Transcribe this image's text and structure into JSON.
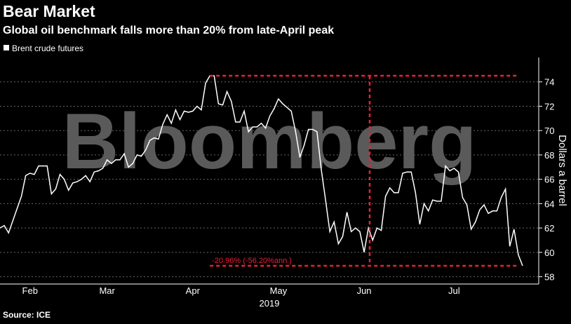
{
  "chart_data": {
    "type": "line",
    "title": "Bear Market",
    "subtitle": "Global oil benchmark falls more than 20% from late-April peak",
    "watermark": "Bloomberg",
    "source": "Source: ICE",
    "x_label": "2019",
    "y_label": "Dollars a barrel",
    "categories": [
      null,
      null,
      null,
      null,
      null,
      null,
      null,
      "Feb",
      null,
      null,
      null,
      null,
      null,
      null,
      null,
      null,
      null,
      null,
      null,
      null,
      null,
      null,
      null,
      null,
      null,
      "Mar",
      null,
      null,
      null,
      null,
      null,
      null,
      null,
      null,
      null,
      null,
      null,
      null,
      null,
      null,
      null,
      null,
      null,
      null,
      null,
      "Apr",
      null,
      null,
      null,
      null,
      null,
      null,
      null,
      null,
      null,
      null,
      null,
      null,
      null,
      null,
      null,
      null,
      null,
      null,
      null,
      "May",
      null,
      null,
      null,
      null,
      null,
      null,
      null,
      null,
      null,
      null,
      null,
      null,
      null,
      null,
      null,
      null,
      null,
      null,
      null,
      "Jun",
      null,
      null,
      null,
      null,
      null,
      null,
      null,
      null,
      null,
      null,
      null,
      null,
      null,
      null,
      null,
      null,
      null,
      null,
      null,
      null,
      "Jul",
      null,
      null,
      null,
      null,
      null,
      null,
      null,
      null,
      null,
      null,
      null,
      null,
      null,
      null,
      null,
      null
    ],
    "series": [
      {
        "name": "Brent crude futures",
        "color": "#ffffff",
        "values": [
          62.0,
          62.2,
          61.6,
          62.6,
          63.6,
          64.6,
          66.3,
          66.5,
          66.4,
          67.1,
          67.1,
          67.1,
          64.8,
          65.2,
          66.4,
          66.0,
          65.1,
          65.7,
          65.8,
          66.0,
          66.3,
          65.8,
          66.6,
          66.7,
          66.9,
          67.6,
          67.3,
          67.6,
          67.6,
          68.1,
          67.0,
          67.3,
          68.0,
          67.9,
          68.4,
          69.2,
          69.4,
          69.3,
          70.5,
          71.3,
          70.6,
          71.7,
          70.9,
          71.6,
          71.5,
          71.6,
          72.0,
          71.7,
          73.9,
          74.5,
          74.5,
          72.2,
          72.1,
          73.2,
          72.4,
          70.7,
          70.7,
          71.6,
          69.9,
          70.3,
          70.3,
          70.6,
          70.2,
          71.2,
          71.8,
          72.6,
          72.2,
          71.9,
          71.6,
          69.9,
          67.8,
          68.8,
          70.1,
          70.1,
          69.9,
          66.8,
          64.3,
          61.7,
          62.5,
          60.7,
          61.3,
          63.3,
          61.7,
          62.0,
          61.7,
          60.0,
          62.0,
          61.0,
          62.0,
          61.8,
          64.6,
          65.3,
          64.9,
          64.9,
          66.5,
          66.6,
          66.6,
          64.9,
          62.3,
          64.0,
          63.4,
          64.3,
          64.2,
          64.2,
          67.1,
          66.7,
          66.9,
          66.6,
          64.5,
          63.9,
          61.9,
          62.5,
          63.5,
          63.9,
          63.2,
          63.4,
          63.4,
          64.5,
          65.2,
          60.5,
          61.9,
          59.8,
          58.9
        ]
      }
    ],
    "annotation": {
      "text": "-20.96% (-56.20%ann.)",
      "high": 74.5,
      "low": 58.9,
      "color": "#e8203a"
    },
    "ylim": [
      57.4,
      76
    ],
    "yticks": [
      58,
      60,
      62,
      64,
      66,
      68,
      70,
      72,
      74
    ],
    "grid": true
  }
}
